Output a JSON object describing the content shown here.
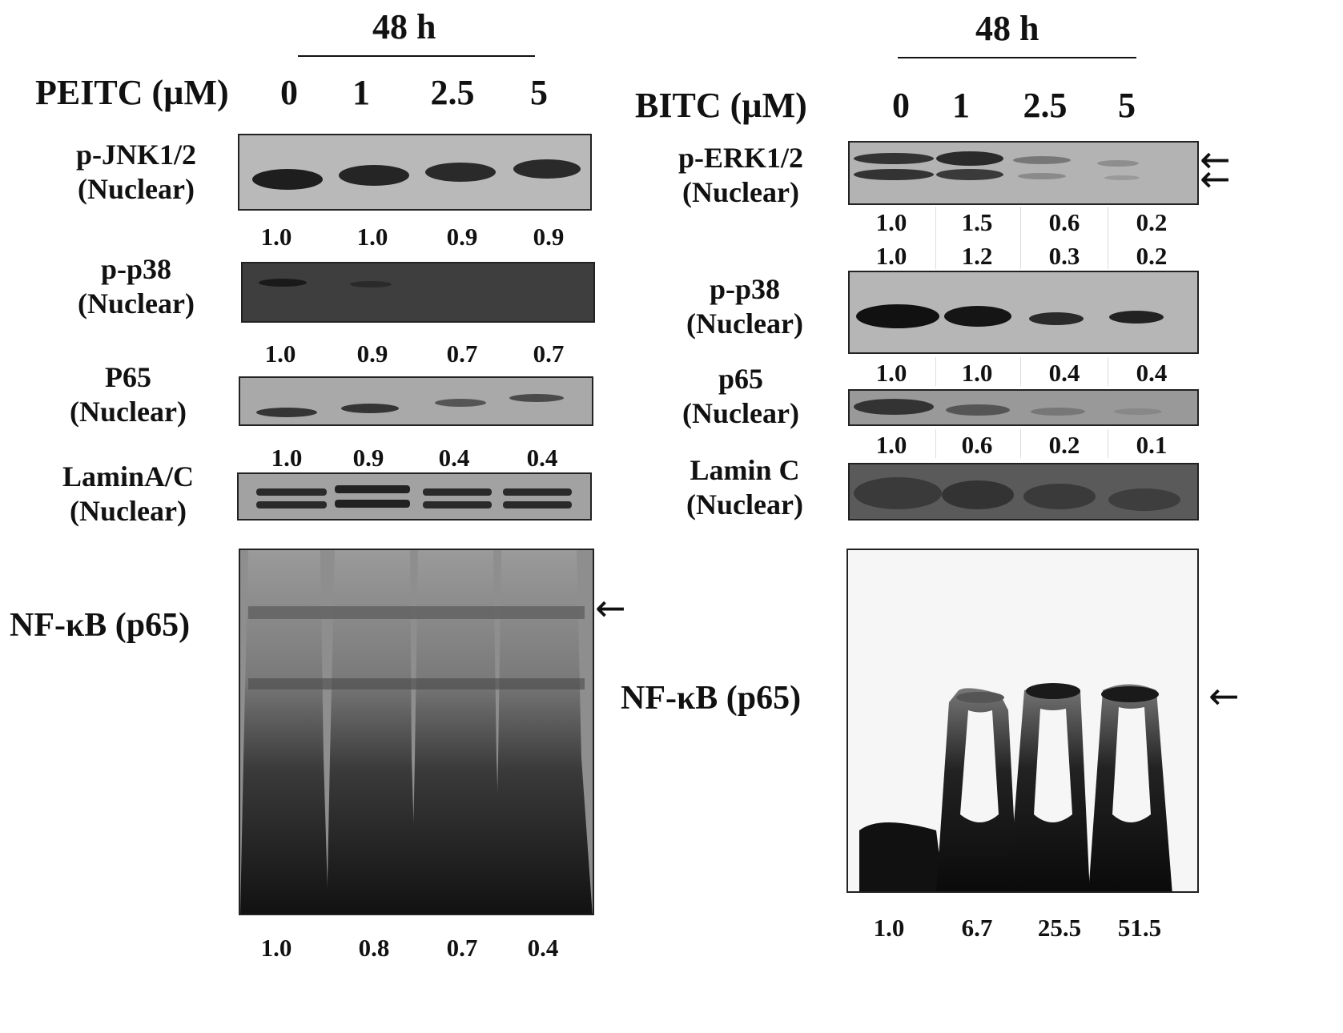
{
  "left": {
    "time_label": "48 h",
    "treatment_label": "PEITC (µM)",
    "concentrations": [
      "0",
      "1",
      "2.5",
      "5"
    ],
    "blots": [
      {
        "label": "p-JNK1/2\n(Nuclear)",
        "values": [
          "1.0",
          "1.0",
          "0.9",
          "0.9"
        ]
      },
      {
        "label": "p-p38\n(Nuclear)",
        "values": [
          "1.0",
          "0.9",
          "0.7",
          "0.7"
        ]
      },
      {
        "label": "P65\n(Nuclear)",
        "values": [
          "1.0",
          "0.9",
          "0.4",
          "0.4"
        ]
      },
      {
        "label": "LaminA/C\n(Nuclear)"
      }
    ],
    "emsa": {
      "label": "NF-κB (p65)",
      "values": [
        "1.0",
        "0.8",
        "0.7",
        "0.4"
      ],
      "arrow": "←"
    }
  },
  "right": {
    "time_label": "48 h",
    "treatment_label": "BITC (µM)",
    "concentrations": [
      "0",
      "1",
      "2.5",
      "5"
    ],
    "blots": [
      {
        "label": "p-ERK1/2\n(Nuclear)",
        "values_upper": [
          "1.0",
          "1.5",
          "0.6",
          "0.2"
        ],
        "values_lower": [
          "1.0",
          "1.2",
          "0.3",
          "0.2"
        ],
        "arrows": [
          "←",
          "←"
        ]
      },
      {
        "label": "p-p38\n(Nuclear)",
        "values": [
          "1.0",
          "1.0",
          "0.4",
          "0.4"
        ]
      },
      {
        "label": "p65\n(Nuclear)",
        "values": [
          "1.0",
          "0.6",
          "0.2",
          "0.1"
        ]
      },
      {
        "label": "Lamin C\n(Nuclear)"
      }
    ],
    "emsa": {
      "label": "NF-κB (p65)",
      "values": [
        "1.0",
        "6.7",
        "25.5",
        "51.5"
      ],
      "arrow": "←"
    }
  }
}
